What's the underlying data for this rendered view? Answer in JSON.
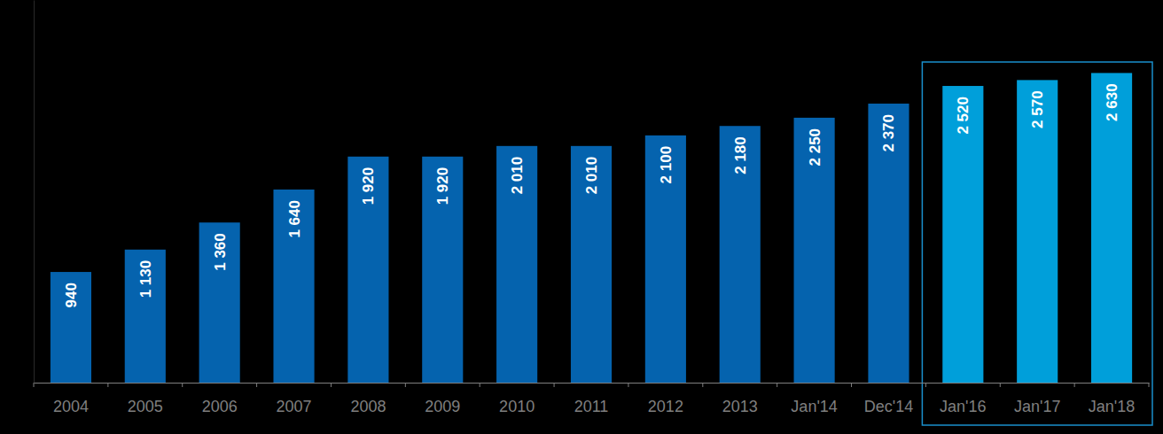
{
  "chart_data": {
    "type": "bar",
    "categories": [
      "2004",
      "2005",
      "2006",
      "2007",
      "2008",
      "2009",
      "2010",
      "2011",
      "2012",
      "2013",
      "Jan'14",
      "Dec'14",
      "Jan'16",
      "Jan'17",
      "Jan'18"
    ],
    "values": [
      940,
      1130,
      1360,
      1640,
      1920,
      1920,
      2010,
      2010,
      2100,
      2180,
      2250,
      2370,
      2520,
      2570,
      2630
    ],
    "value_labels": [
      "940",
      "1 130",
      "1 360",
      "1 640",
      "1 920",
      "1 920",
      "2 010",
      "2 010",
      "2 100",
      "2 180",
      "2 250",
      "2 370",
      "2 520",
      "2 570",
      "2 630"
    ],
    "colors": [
      "#0563ae",
      "#0563ae",
      "#0563ae",
      "#0563ae",
      "#0563ae",
      "#0563ae",
      "#0563ae",
      "#0563ae",
      "#0563ae",
      "#0563ae",
      "#0563ae",
      "#0563ae",
      "#009fda",
      "#009fda",
      "#009fda"
    ],
    "ylim": [
      0,
      3250
    ],
    "data_labels": true,
    "tick_labels": "x",
    "grid": false
  }
}
